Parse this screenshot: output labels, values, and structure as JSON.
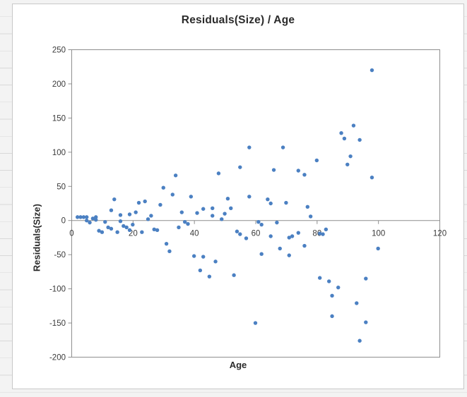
{
  "chart_data": {
    "type": "scatter",
    "title": "Residuals(Size) / Age",
    "xlabel": "Age",
    "ylabel": "Residuals(Size)",
    "xlim": [
      0,
      120
    ],
    "ylim": [
      -200,
      250
    ],
    "x_ticks": [
      0,
      20,
      40,
      60,
      80,
      100,
      120
    ],
    "y_ticks": [
      250,
      200,
      150,
      100,
      50,
      0,
      -50,
      -100,
      -150,
      -200
    ],
    "grid": false,
    "legend": "none",
    "points": [
      [
        2,
        5
      ],
      [
        3,
        5
      ],
      [
        4,
        5
      ],
      [
        5,
        5
      ],
      [
        5,
        0
      ],
      [
        6,
        -3
      ],
      [
        7,
        3
      ],
      [
        8,
        5
      ],
      [
        8,
        1
      ],
      [
        9,
        -15
      ],
      [
        10,
        -17
      ],
      [
        11,
        -2
      ],
      [
        12,
        -10
      ],
      [
        13,
        -12
      ],
      [
        13,
        15
      ],
      [
        14,
        31
      ],
      [
        15,
        -17
      ],
      [
        16,
        8
      ],
      [
        16,
        -1
      ],
      [
        17,
        -8
      ],
      [
        18,
        -10
      ],
      [
        19,
        -14
      ],
      [
        19,
        9
      ],
      [
        20,
        -6
      ],
      [
        21,
        12
      ],
      [
        22,
        26
      ],
      [
        23,
        -17
      ],
      [
        24,
        28
      ],
      [
        25,
        2
      ],
      [
        26,
        7
      ],
      [
        27,
        -13
      ],
      [
        28,
        -14
      ],
      [
        29,
        23
      ],
      [
        30,
        48
      ],
      [
        31,
        -34
      ],
      [
        32,
        -45
      ],
      [
        33,
        38
      ],
      [
        34,
        66
      ],
      [
        35,
        -10
      ],
      [
        36,
        12
      ],
      [
        37,
        -2
      ],
      [
        38,
        -5
      ],
      [
        39,
        35
      ],
      [
        40,
        -52
      ],
      [
        41,
        11
      ],
      [
        42,
        -73
      ],
      [
        43,
        17
      ],
      [
        43,
        -53
      ],
      [
        45,
        -82
      ],
      [
        46,
        18
      ],
      [
        46,
        7
      ],
      [
        47,
        -60
      ],
      [
        48,
        69
      ],
      [
        49,
        2
      ],
      [
        50,
        10
      ],
      [
        51,
        32
      ],
      [
        52,
        18
      ],
      [
        53,
        -80
      ],
      [
        54,
        -16
      ],
      [
        55,
        -20
      ],
      [
        55,
        78
      ],
      [
        57,
        -26
      ],
      [
        58,
        107
      ],
      [
        58,
        35
      ],
      [
        60,
        -150
      ],
      [
        61,
        -2
      ],
      [
        62,
        -6
      ],
      [
        62,
        -49
      ],
      [
        64,
        31
      ],
      [
        65,
        25
      ],
      [
        65,
        -23
      ],
      [
        66,
        74
      ],
      [
        67,
        -3
      ],
      [
        68,
        -41
      ],
      [
        69,
        107
      ],
      [
        70,
        26
      ],
      [
        71,
        -51
      ],
      [
        71,
        -25
      ],
      [
        72,
        -23
      ],
      [
        74,
        -18
      ],
      [
        74,
        73
      ],
      [
        76,
        67
      ],
      [
        76,
        -37
      ],
      [
        77,
        20
      ],
      [
        78,
        6
      ],
      [
        80,
        88
      ],
      [
        81,
        -84
      ],
      [
        81,
        -19
      ],
      [
        82,
        -20
      ],
      [
        83,
        -13
      ],
      [
        84,
        -89
      ],
      [
        85,
        -110
      ],
      [
        85,
        -140
      ],
      [
        87,
        -98
      ],
      [
        88,
        128
      ],
      [
        89,
        120
      ],
      [
        90,
        82
      ],
      [
        91,
        94
      ],
      [
        92,
        139
      ],
      [
        93,
        -121
      ],
      [
        94,
        118
      ],
      [
        94,
        -176
      ],
      [
        96,
        -149
      ],
      [
        96,
        -85
      ],
      [
        98,
        220
      ],
      [
        98,
        63
      ],
      [
        100,
        -41
      ]
    ]
  },
  "colors": {
    "marker": "#4b80c2",
    "axis_line": "#8e8e8e",
    "frame_border": "#c8c8c8",
    "tick_label": "#3a3a3a",
    "title_text": "#2b2b2b"
  }
}
